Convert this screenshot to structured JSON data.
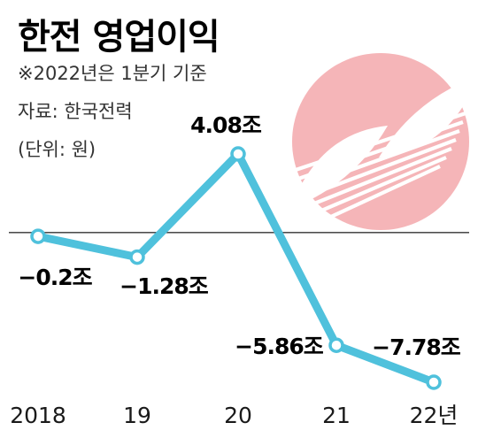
{
  "header": {
    "title": "한전 영업이익",
    "note": "※2022년은 1분기 기준",
    "source": "자료: 한국전력",
    "unit": "(단위: 원)"
  },
  "colors": {
    "line": "#4fc1dc",
    "zero_line": "#333333",
    "logo": "#f5b5b8"
  },
  "logo": {
    "name": "kepco-logo"
  },
  "chart_data": {
    "type": "line",
    "categories": [
      "2018",
      "19",
      "20",
      "21",
      "22년"
    ],
    "values": [
      -0.2,
      -1.28,
      4.08,
      -5.86,
      -7.78
    ],
    "data_labels": [
      "−0.2조",
      "−1.28조",
      "4.08조",
      "−5.86조",
      "−7.78조"
    ],
    "unit": "조",
    "title": "한전 영업이익",
    "xlabel": "",
    "ylabel": "",
    "grid": false
  }
}
